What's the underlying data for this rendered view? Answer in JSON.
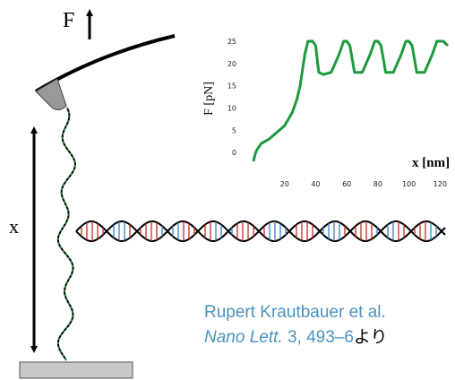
{
  "labels": {
    "force": "F",
    "extension": "x"
  },
  "citation": {
    "authors": "Rupert Krautbauer et al.",
    "journal": "Nano Lett.",
    "reference": " 3, 493–6",
    "suffix": "より"
  },
  "chart_data": {
    "type": "line",
    "ylabel": "F [pN]",
    "xlabel": "x [nm]",
    "x": [
      0,
      1,
      2,
      5,
      10,
      15,
      20,
      25,
      28,
      30,
      33,
      35,
      38,
      40,
      42,
      45,
      50,
      55,
      58,
      60,
      62,
      65,
      70,
      75,
      78,
      80,
      82,
      85,
      90,
      95,
      98,
      100,
      102,
      105,
      110,
      115,
      118,
      120,
      122,
      125
    ],
    "series": [
      {
        "name": "F",
        "color": "#1e9a3e",
        "values": [
          -2,
          -0.5,
          0.5,
          2,
          3,
          4.5,
          6,
          9,
          12,
          15,
          22,
          25,
          25,
          24,
          18,
          17.5,
          18,
          22,
          25,
          25,
          24,
          18,
          18,
          22,
          25,
          25,
          24,
          18,
          18,
          22,
          25,
          25,
          24,
          18,
          18,
          22,
          25,
          25,
          25,
          24
        ]
      }
    ],
    "xlim": [
      0,
      125
    ],
    "ylim": [
      -3,
      26
    ],
    "xticks": [
      20,
      40,
      60,
      80,
      100,
      120
    ],
    "yticks": [
      0,
      5,
      10,
      15,
      20,
      25
    ]
  }
}
